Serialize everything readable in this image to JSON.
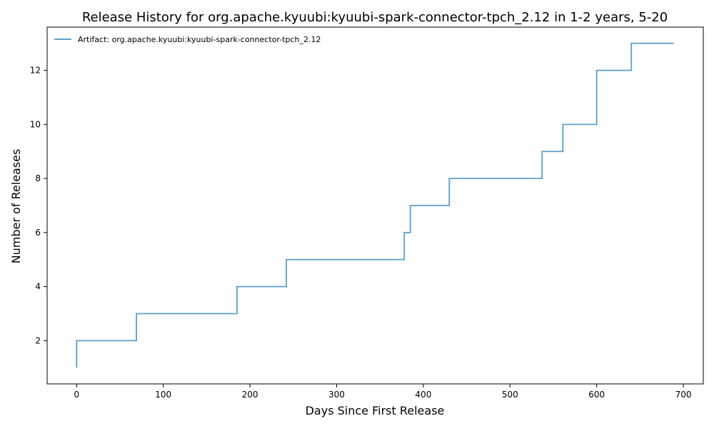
{
  "chart_data": {
    "type": "line",
    "step": "post",
    "title": "Release History for org.apache.kyuubi:kyuubi-spark-connector-tpch_2.12 in 1-2 years, 5-20",
    "xlabel": "Days Since First Release",
    "ylabel": "Number of Releases",
    "xlim": [
      -34,
      723
    ],
    "ylim": [
      0.4,
      13.6
    ],
    "xticks": [
      0,
      100,
      200,
      300,
      400,
      500,
      600,
      700
    ],
    "yticks": [
      2,
      4,
      6,
      8,
      10,
      12
    ],
    "grid": false,
    "legend_position": "top-left",
    "series": [
      {
        "name": "Artifact: org.apache.kyuubi:kyuubi-spark-connector-tpch_2.12",
        "color": "#5b9fcb",
        "x": [
          0,
          0,
          69,
          185,
          242,
          378,
          385,
          430,
          537,
          561,
          600,
          640,
          689
        ],
        "y": [
          1,
          2,
          3,
          4,
          5,
          6,
          7,
          8,
          9,
          10,
          12,
          13,
          13
        ]
      }
    ]
  }
}
